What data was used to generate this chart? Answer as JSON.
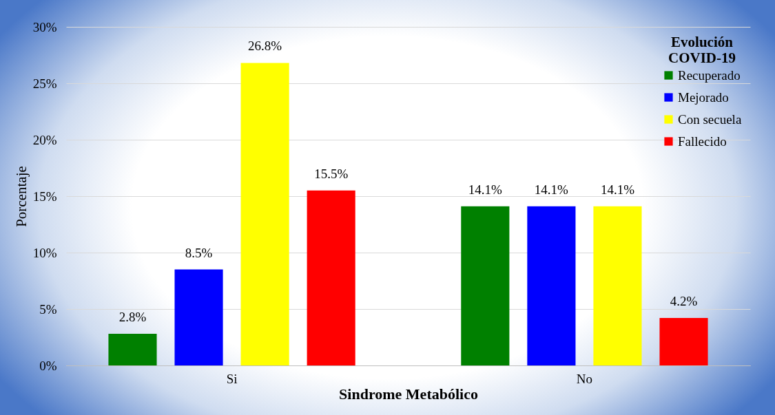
{
  "chart_data": {
    "type": "bar",
    "xlabel": "Sindrome Metabólico",
    "ylabel": "Porcentaje",
    "legend_title": "Evolución COVID-19",
    "categories": [
      "Si",
      "No"
    ],
    "series": [
      {
        "name": "Recuperado",
        "color": "#008000",
        "values": [
          2.8,
          14.1
        ],
        "value_labels": [
          "2.8%",
          "14.1%"
        ]
      },
      {
        "name": "Mejorado",
        "color": "#0000ff",
        "values": [
          8.5,
          14.1
        ],
        "value_labels": [
          "8.5%",
          "14.1%"
        ]
      },
      {
        "name": "Con secuela",
        "color": "#ffff00",
        "values": [
          26.8,
          14.1
        ],
        "value_labels": [
          "26.8%",
          "14.1%"
        ]
      },
      {
        "name": "Fallecido",
        "color": "#ff0000",
        "values": [
          15.5,
          4.2
        ],
        "value_labels": [
          "15.5%",
          "4.2%"
        ]
      }
    ],
    "ylim": [
      0,
      30
    ],
    "yticks": [
      {
        "value": 0,
        "label": "0%"
      },
      {
        "value": 5,
        "label": "5%"
      },
      {
        "value": 10,
        "label": "10%"
      },
      {
        "value": 15,
        "label": "15%"
      },
      {
        "value": 20,
        "label": "20%"
      },
      {
        "value": 25,
        "label": "25%"
      },
      {
        "value": 30,
        "label": "30%"
      }
    ],
    "grid": "y",
    "legend": "top right"
  }
}
